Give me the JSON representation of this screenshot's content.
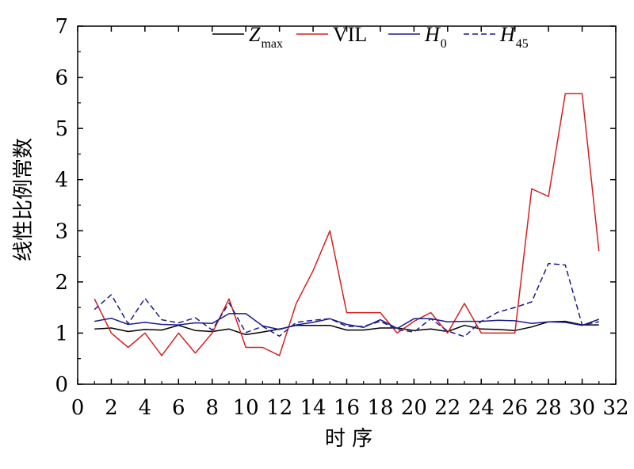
{
  "chart_data": {
    "type": "line",
    "title": "",
    "xlabel": "时 序",
    "ylabel": "线性比例常数",
    "xlim": [
      0,
      32
    ],
    "ylim": [
      0,
      7
    ],
    "xticks": [
      0,
      2,
      4,
      6,
      8,
      10,
      12,
      14,
      16,
      18,
      20,
      22,
      24,
      26,
      28,
      30,
      32
    ],
    "yticks": [
      0,
      1,
      2,
      3,
      4,
      5,
      6,
      7
    ],
    "grid": false,
    "legend_position": "top",
    "x": [
      1,
      2,
      3,
      4,
      5,
      6,
      7,
      8,
      9,
      10,
      11,
      12,
      13,
      14,
      15,
      16,
      17,
      18,
      19,
      20,
      21,
      22,
      23,
      24,
      25,
      26,
      27,
      28,
      29,
      30,
      31
    ],
    "series": [
      {
        "name": "Z",
        "name_main": "Z",
        "name_sub": "max",
        "italic": true,
        "color": "#000000",
        "dash": "solid",
        "values": [
          1.08,
          1.1,
          1.03,
          1.07,
          1.06,
          1.15,
          1.05,
          1.03,
          1.08,
          0.97,
          1.02,
          1.08,
          1.15,
          1.15,
          1.15,
          1.06,
          1.06,
          1.1,
          1.1,
          1.05,
          1.08,
          1.03,
          1.15,
          1.08,
          1.07,
          1.05,
          1.12,
          1.22,
          1.23,
          1.16,
          1.16
        ]
      },
      {
        "name": "VIL",
        "name_main": "VIL",
        "name_sub": "",
        "italic": false,
        "color": "#d62020",
        "dash": "solid",
        "values": [
          1.67,
          1.0,
          0.72,
          1.0,
          0.56,
          1.0,
          0.61,
          1.0,
          1.67,
          0.72,
          0.72,
          0.56,
          1.58,
          2.22,
          3.0,
          1.4,
          1.4,
          1.4,
          1.0,
          1.23,
          1.4,
          1.0,
          1.58,
          1.0,
          1.0,
          1.0,
          3.82,
          3.67,
          5.68,
          5.68,
          2.6
        ]
      },
      {
        "name": "H0",
        "name_main": "H",
        "name_sub": "0",
        "italic": true,
        "color": "#1c1c8c",
        "dash": "solid",
        "values": [
          1.23,
          1.29,
          1.17,
          1.21,
          1.17,
          1.16,
          1.2,
          1.19,
          1.38,
          1.38,
          1.14,
          1.07,
          1.16,
          1.21,
          1.28,
          1.17,
          1.11,
          1.26,
          1.09,
          1.28,
          1.28,
          1.22,
          1.23,
          1.23,
          1.25,
          1.24,
          1.19,
          1.22,
          1.21,
          1.15,
          1.27
        ]
      },
      {
        "name": "H45",
        "name_main": "H",
        "name_sub": "45",
        "italic": true,
        "color": "#1c1c8c",
        "dash": "dashed",
        "values": [
          1.46,
          1.75,
          1.18,
          1.68,
          1.26,
          1.2,
          1.3,
          1.06,
          1.59,
          1.01,
          1.13,
          0.94,
          1.21,
          1.25,
          1.28,
          1.13,
          1.13,
          1.23,
          1.07,
          1.02,
          1.28,
          1.04,
          0.93,
          1.23,
          1.41,
          1.5,
          1.61,
          2.36,
          2.33,
          1.16,
          1.22
        ]
      }
    ]
  }
}
